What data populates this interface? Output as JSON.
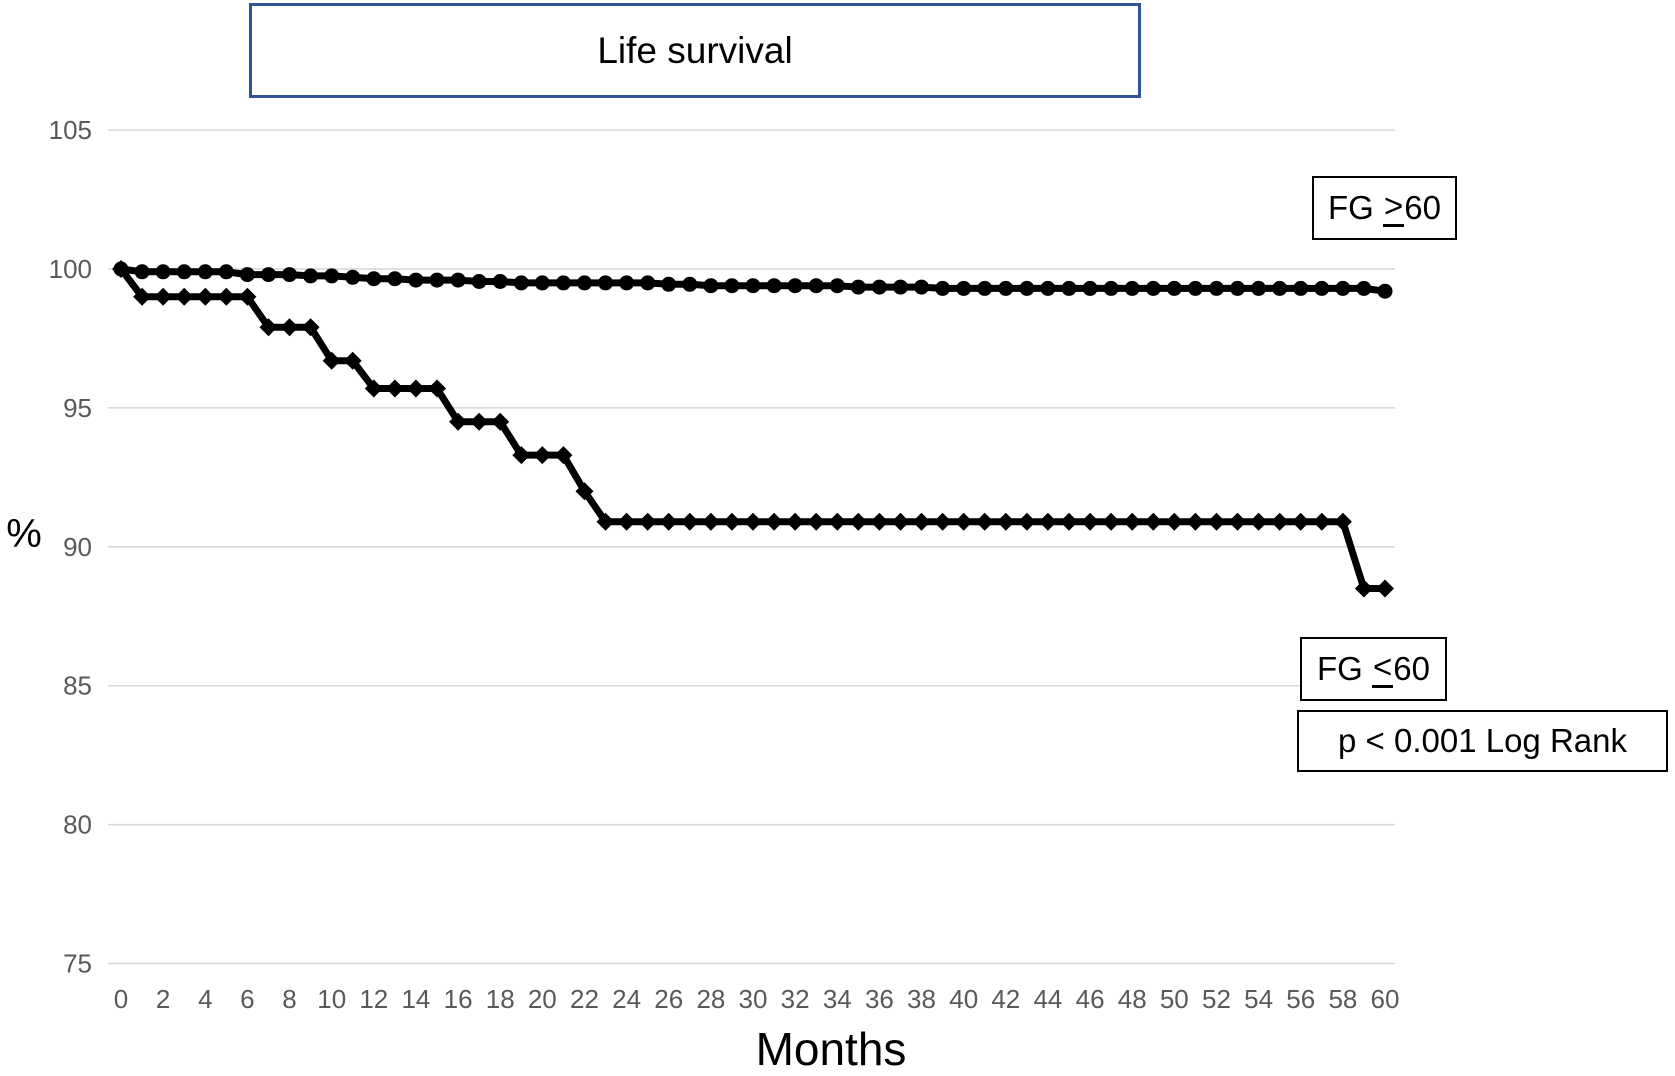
{
  "title": {
    "text": "Life survival"
  },
  "axis": {
    "y_label": "%",
    "x_label": "Months"
  },
  "annotations": {
    "fg_high": {
      "prefix": "FG ",
      "op": ">",
      "suffix": "60"
    },
    "fg_low": {
      "prefix": "FG ",
      "op": "<",
      "suffix": "60"
    },
    "p_value": "p < 0.001 Log Rank"
  },
  "colors": {
    "grid": "#d6d6d6",
    "tick_text": "#595959",
    "series": "#000000",
    "title_border": "#2F5496",
    "annotation_border": "#000000"
  },
  "chart_data": {
    "type": "line",
    "title": "Life survival",
    "xlabel": "Months",
    "ylabel": "%",
    "xlim": [
      0,
      60
    ],
    "ylim": [
      75,
      105
    ],
    "grid": "horizontal gridlines at every 5 units",
    "legend_position": "annotation boxes at right (FG >60 upper, FG <60 lower)",
    "y_ticks": [
      105,
      100,
      95,
      90,
      85,
      80,
      75
    ],
    "x_ticks": [
      0,
      2,
      4,
      6,
      8,
      10,
      12,
      14,
      16,
      18,
      20,
      22,
      24,
      26,
      28,
      30,
      32,
      34,
      36,
      38,
      40,
      42,
      44,
      46,
      48,
      50,
      52,
      54,
      56,
      58,
      60
    ],
    "x": [
      0,
      1,
      2,
      3,
      4,
      5,
      6,
      7,
      8,
      9,
      10,
      11,
      12,
      13,
      14,
      15,
      16,
      17,
      18,
      19,
      20,
      21,
      22,
      23,
      24,
      25,
      26,
      27,
      28,
      29,
      30,
      31,
      32,
      33,
      34,
      35,
      36,
      37,
      38,
      39,
      40,
      41,
      42,
      43,
      44,
      45,
      46,
      47,
      48,
      49,
      50,
      51,
      52,
      53,
      54,
      55,
      56,
      57,
      58,
      59,
      60
    ],
    "series": [
      {
        "id": "fg-high",
        "name": "FG >60",
        "marker": "circle",
        "color": "#000000",
        "values": [
          100,
          99.9,
          99.9,
          99.9,
          99.9,
          99.9,
          99.8,
          99.8,
          99.8,
          99.75,
          99.75,
          99.7,
          99.65,
          99.65,
          99.6,
          99.6,
          99.6,
          99.55,
          99.55,
          99.5,
          99.5,
          99.5,
          99.5,
          99.5,
          99.5,
          99.5,
          99.45,
          99.45,
          99.4,
          99.4,
          99.4,
          99.4,
          99.4,
          99.4,
          99.4,
          99.35,
          99.35,
          99.35,
          99.35,
          99.3,
          99.3,
          99.3,
          99.3,
          99.3,
          99.3,
          99.3,
          99.3,
          99.3,
          99.3,
          99.3,
          99.3,
          99.3,
          99.3,
          99.3,
          99.3,
          99.3,
          99.3,
          99.3,
          99.3,
          99.3,
          99.2
        ]
      },
      {
        "id": "fg-low",
        "name": "FG <60",
        "marker": "diamond",
        "color": "#000000",
        "values": [
          100,
          99,
          99,
          99,
          99,
          99,
          99,
          97.9,
          97.9,
          97.9,
          96.7,
          96.7,
          95.7,
          95.7,
          95.7,
          95.7,
          94.5,
          94.5,
          94.5,
          93.3,
          93.3,
          93.3,
          92,
          90.9,
          90.9,
          90.9,
          90.9,
          90.9,
          90.9,
          90.9,
          90.9,
          90.9,
          90.9,
          90.9,
          90.9,
          90.9,
          90.9,
          90.9,
          90.9,
          90.9,
          90.9,
          90.9,
          90.9,
          90.9,
          90.9,
          90.9,
          90.9,
          90.9,
          90.9,
          90.9,
          90.9,
          90.9,
          90.9,
          90.9,
          90.9,
          90.9,
          90.9,
          90.9,
          90.9,
          88.5,
          88.5
        ]
      }
    ],
    "annotations": [
      "FG >60",
      "FG <60",
      "p < 0.001 Log Rank"
    ]
  }
}
